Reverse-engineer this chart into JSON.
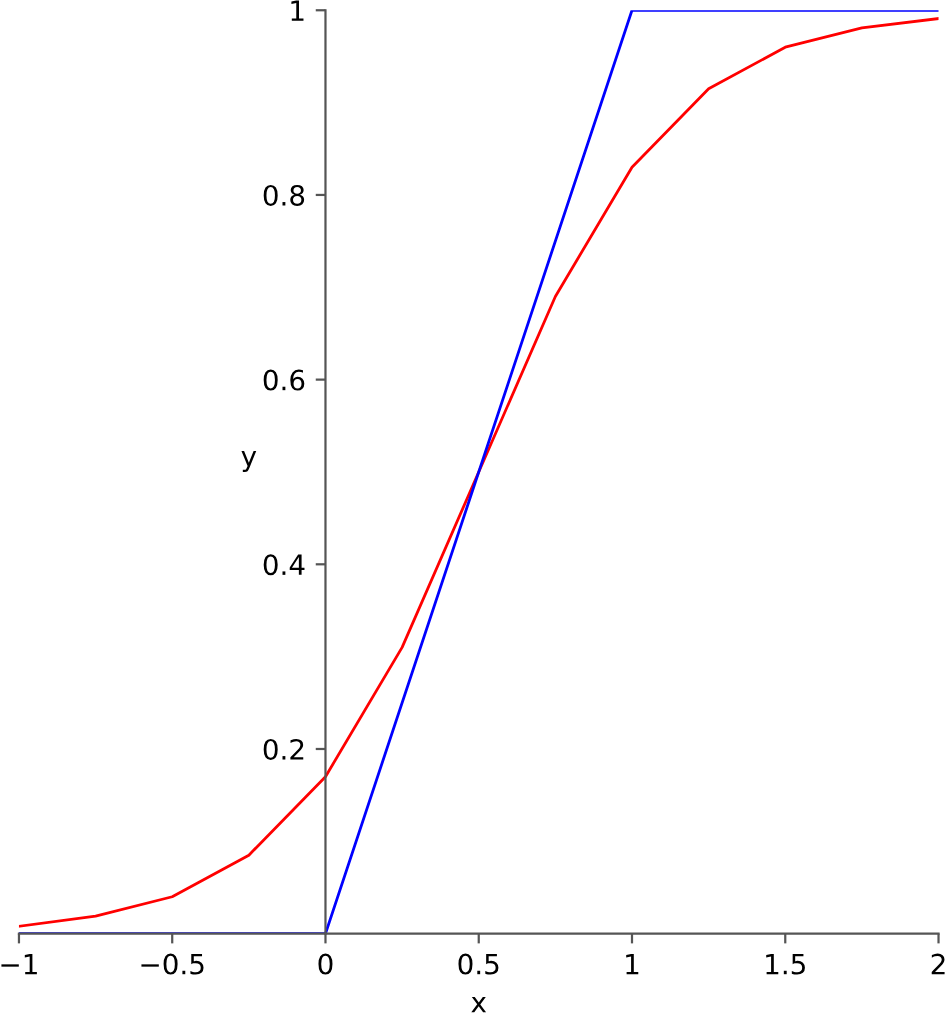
{
  "chart_data": {
    "type": "line",
    "xlabel": "x",
    "ylabel": "y",
    "xlim": [
      -1,
      2
    ],
    "ylim": [
      0,
      1
    ],
    "xticks": [
      {
        "value": -1,
        "label": "−1"
      },
      {
        "value": -0.5,
        "label": "−0.5"
      },
      0,
      0.5,
      1,
      1.5,
      2
    ],
    "yticks": [
      0.2,
      0.4,
      0.6,
      0.8,
      1
    ],
    "grid": false,
    "legend": false,
    "marker": "none",
    "line_style": "solid",
    "series": [
      {
        "color": "#ff0000",
        "x": [
          -1,
          -0.75,
          -0.5,
          -0.25,
          0,
          0.25,
          0.5,
          0.75,
          1,
          1.25,
          1.5,
          1.75,
          2
        ],
        "values": [
          0.008,
          0.019,
          0.04,
          0.085,
          0.17,
          0.31,
          0.5,
          0.69,
          0.83,
          0.915,
          0.96,
          0.981,
          0.991
        ]
      },
      {
        "color": "#0000ff",
        "x": [
          -1,
          0,
          1,
          2
        ],
        "values": [
          0,
          0,
          1,
          1
        ]
      }
    ]
  }
}
